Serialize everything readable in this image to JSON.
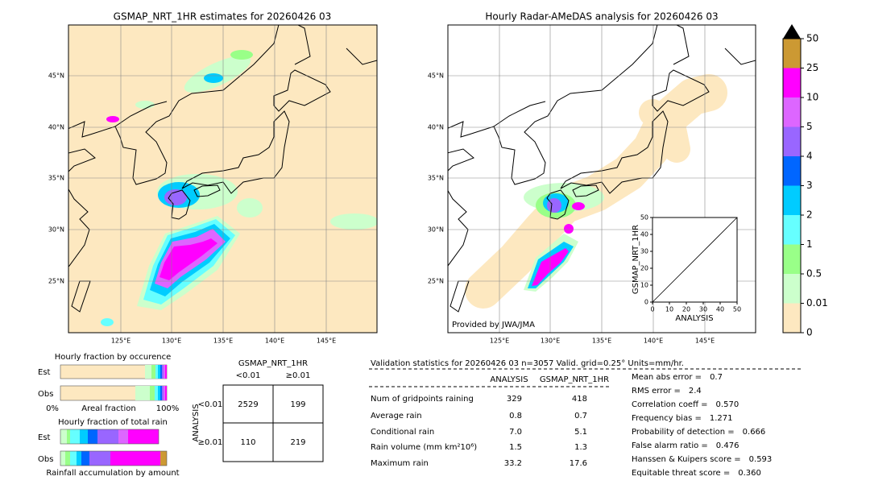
{
  "left_map": {
    "title": "GSMAP_NRT_1HR estimates for 20260426 03",
    "lat_labels": [
      "45°N",
      "40°N",
      "35°N",
      "30°N",
      "25°N"
    ],
    "lon_labels": [
      "125°E",
      "130°E",
      "135°E",
      "140°E",
      "145°E"
    ]
  },
  "right_map": {
    "title": "Hourly Radar-AMeDAS analysis for 20260426 03",
    "lat_labels": [
      "45°N",
      "40°N",
      "35°N",
      "30°N",
      "25°N"
    ],
    "lon_labels": [
      "125°E",
      "130°E",
      "135°E",
      "140°E",
      "145°E"
    ],
    "credit": "Provided by JWA/JMA"
  },
  "colorbar": {
    "levels": [
      0,
      0.01,
      0.5,
      1,
      2,
      3,
      4,
      5,
      10,
      25,
      50
    ],
    "colors": [
      "#fde8c0",
      "#ccffcc",
      "#99ff88",
      "#66ffff",
      "#00ccff",
      "#0066ff",
      "#9966ff",
      "#dd66ff",
      "#ff00ff",
      "#cc9933"
    ]
  },
  "inset": {
    "xlabel": "ANALYSIS",
    "ylabel": "GSMAP_NRT_1HR",
    "xticks": [
      0,
      10,
      20,
      30,
      40,
      50
    ],
    "yticks": [
      0,
      10,
      20,
      30,
      40,
      50
    ]
  },
  "occurrence": {
    "title": "Hourly fraction by occurence",
    "rows": [
      "Est",
      "Obs"
    ],
    "x_left": "0%",
    "x_label": "Areal fraction",
    "x_right": "100%"
  },
  "total_rain": {
    "title": "Hourly fraction of total rain",
    "rows": [
      "Est",
      "Obs"
    ],
    "x_label": "Rainfall accumulation by amount"
  },
  "contingency": {
    "title": "GSMAP_NRT_1HR",
    "columns": [
      "<0.01",
      "≥0.01"
    ],
    "row_title": "ANALYSIS",
    "rows": [
      "<0.01",
      "≥0.01"
    ],
    "cells": [
      [
        2529,
        199
      ],
      [
        110,
        219
      ]
    ]
  },
  "validation": {
    "header": "Validation statistics for 20260426 03  n=3057 Valid. grid=0.25° Units=mm/hr.",
    "columns": [
      "ANALYSIS",
      "GSMAP_NRT_1HR"
    ],
    "rows": [
      {
        "label": "Num of gridpoints raining",
        "values": [
          "329",
          "418"
        ]
      },
      {
        "label": "Average rain",
        "values": [
          "0.8",
          "0.7"
        ]
      },
      {
        "label": "Conditional rain",
        "values": [
          "7.0",
          "5.1"
        ]
      },
      {
        "label": "Rain volume (mm km²10⁶)",
        "values": [
          "1.5",
          "1.3"
        ]
      },
      {
        "label": "Maximum rain",
        "values": [
          "33.2",
          "17.6"
        ]
      }
    ],
    "scores": [
      {
        "label": "Mean abs error =",
        "value": "0.7"
      },
      {
        "label": "RMS error =",
        "value": "2.4"
      },
      {
        "label": "Correlation coeff =",
        "value": "0.570"
      },
      {
        "label": "Frequency bias =",
        "value": "1.271"
      },
      {
        "label": "Probability of detection =",
        "value": "0.666"
      },
      {
        "label": "False alarm ratio =",
        "value": "0.476"
      },
      {
        "label": "Hanssen & Kuipers score =",
        "value": "0.593"
      },
      {
        "label": "Equitable threat score =",
        "value": "0.360"
      }
    ]
  }
}
